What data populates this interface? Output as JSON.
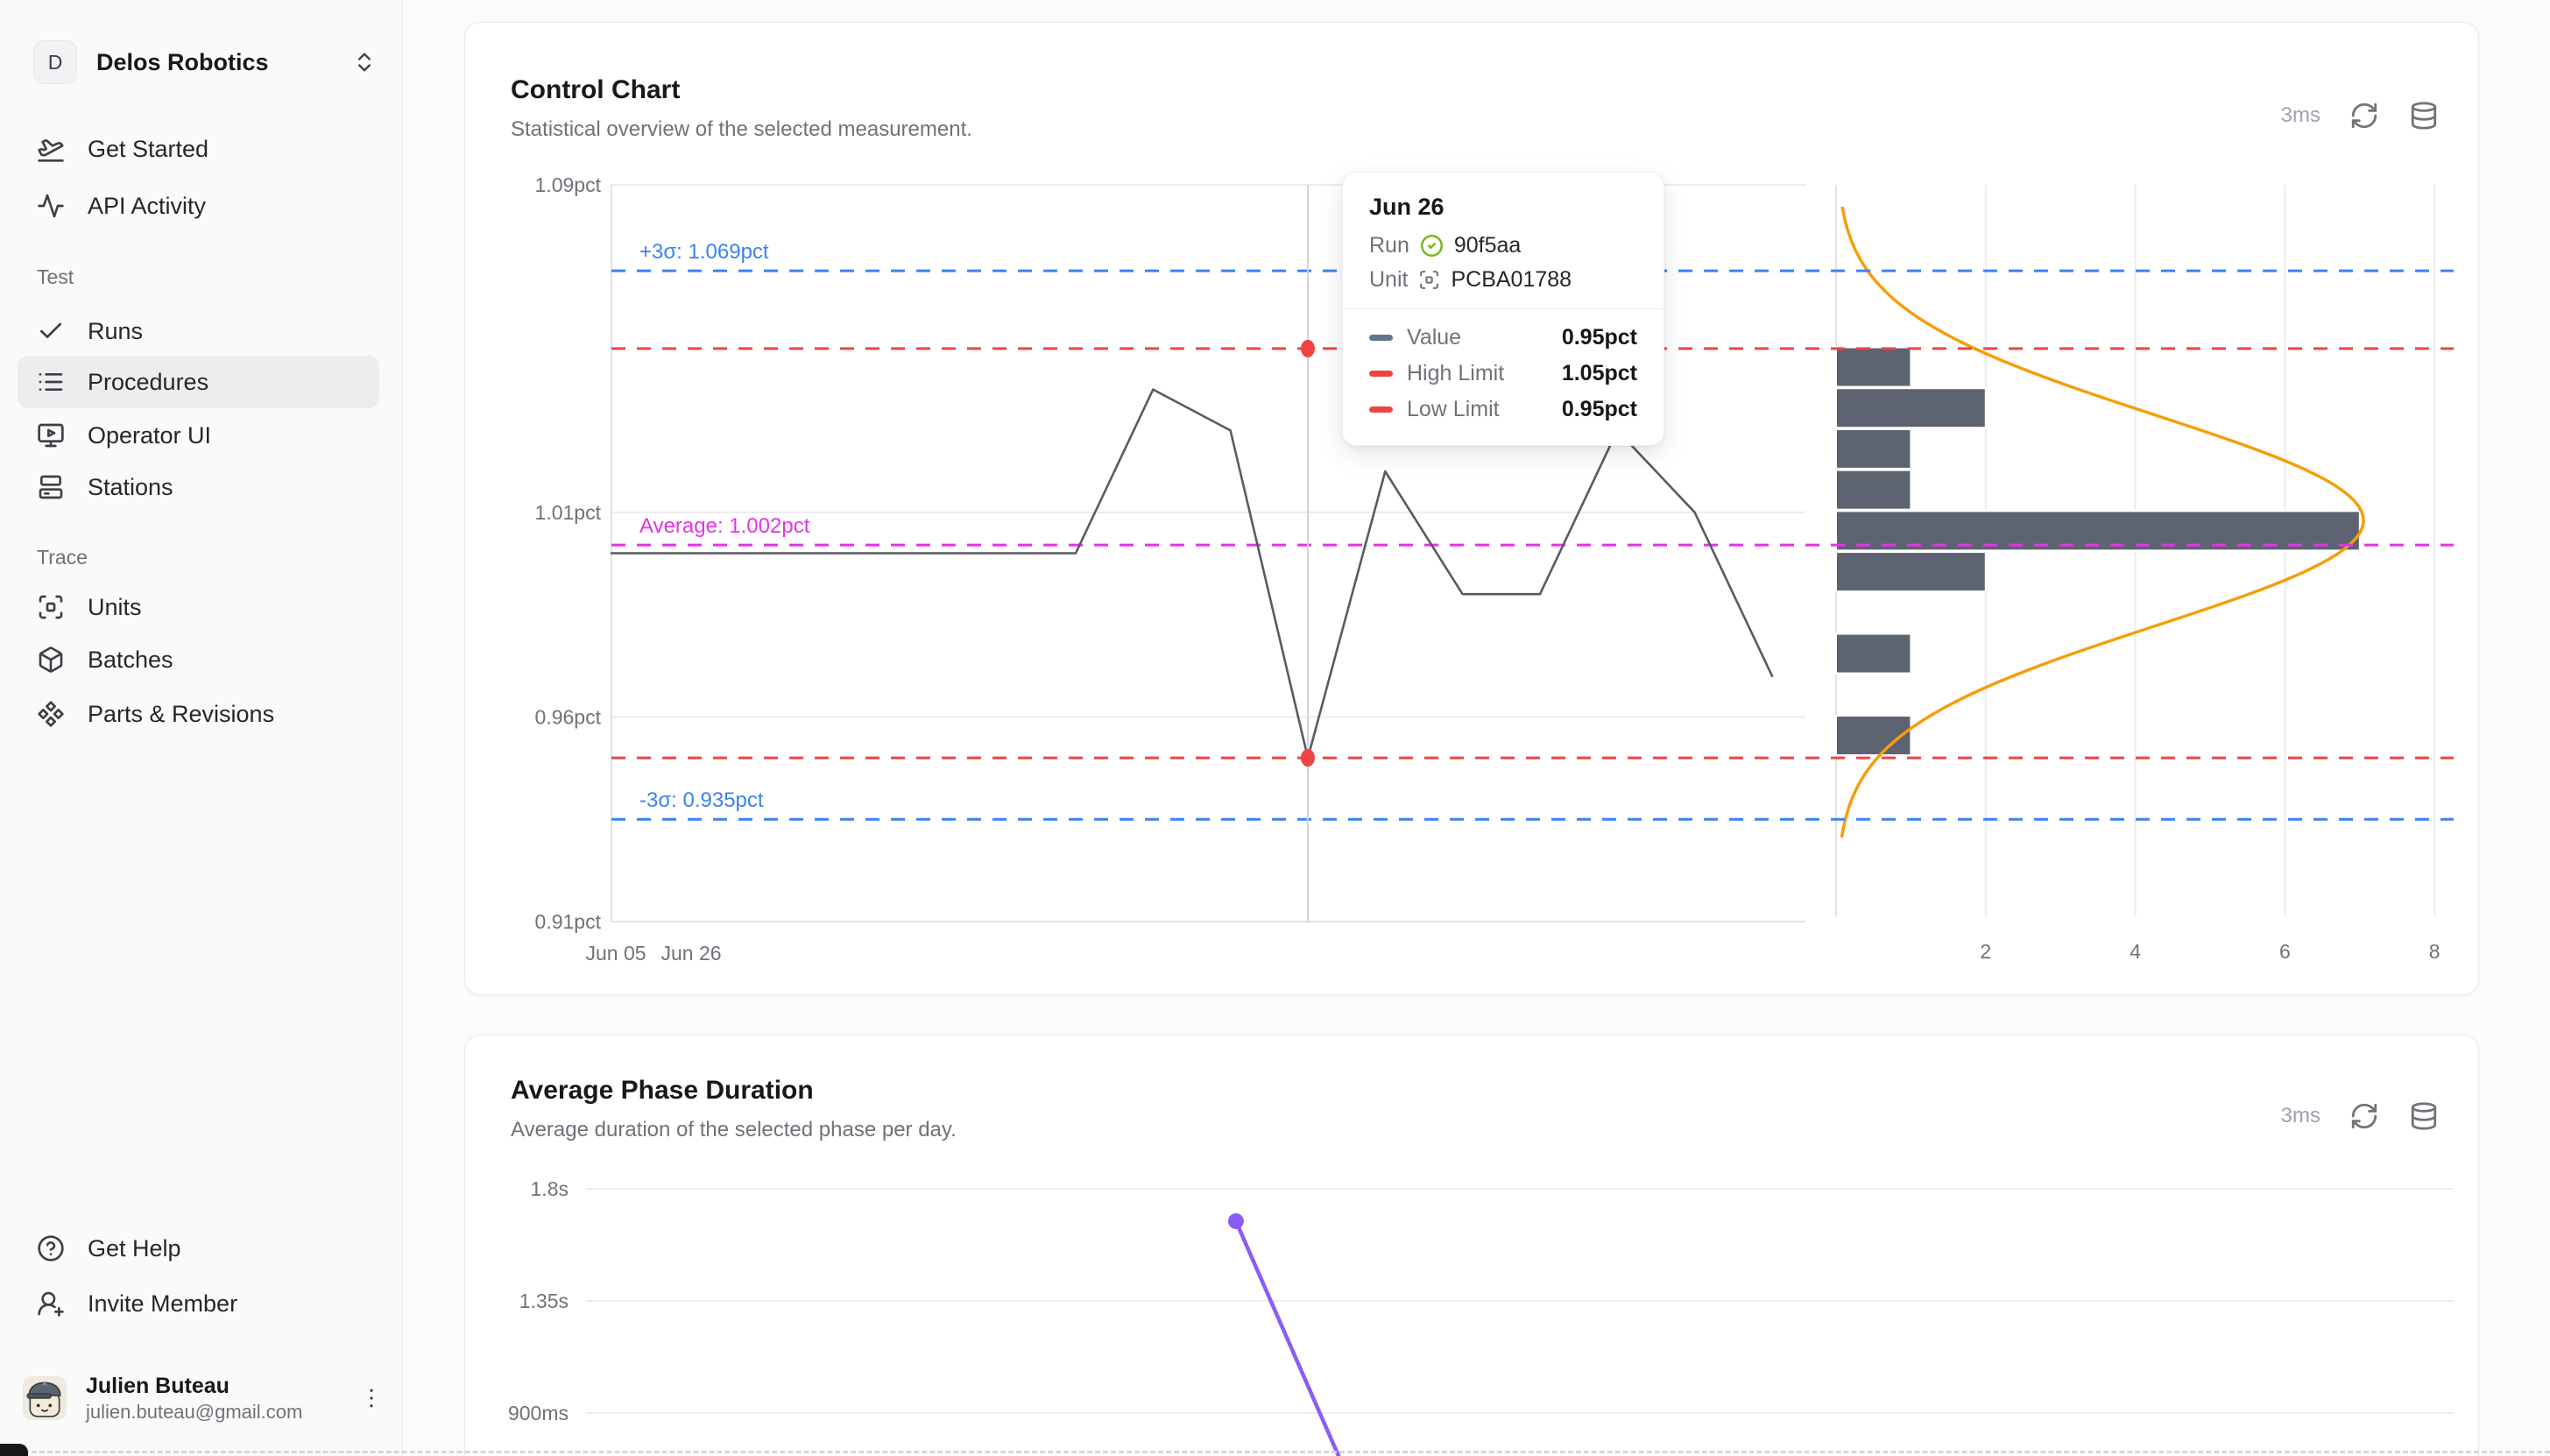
{
  "sidebar": {
    "workspace": {
      "initial": "D",
      "name": "Delos Robotics"
    },
    "groups": [
      {
        "label": "",
        "items": [
          {
            "label": "Get Started"
          },
          {
            "label": "API Activity"
          }
        ]
      },
      {
        "label": "Test",
        "items": [
          {
            "label": "Runs"
          },
          {
            "label": "Procedures",
            "active": true
          },
          {
            "label": "Operator UI"
          },
          {
            "label": "Stations"
          }
        ]
      },
      {
        "label": "Trace",
        "items": [
          {
            "label": "Units"
          },
          {
            "label": "Batches"
          },
          {
            "label": "Parts & Revisions"
          }
        ]
      }
    ],
    "footer_items": [
      {
        "label": "Get Help"
      },
      {
        "label": "Invite Member"
      }
    ],
    "user": {
      "name": "Julien Buteau",
      "email": "julien.buteau@gmail.com"
    }
  },
  "colors": {
    "blue": "#3b82f6",
    "red": "#ef4444",
    "magenta": "#e334e3",
    "series": "#5a5a64",
    "bar": "#5d6370",
    "curve": "#f59e0b",
    "purple": "#8b5cf6",
    "grid": "#ececef",
    "axis": "#e2e2e6",
    "tick_text": "#71717a",
    "crosshair": "#d4d4d8",
    "lime": "#7cb518"
  },
  "chart_data": [
    {
      "type": "line",
      "subtype": "control-chart-with-histogram",
      "title": "Control Chart",
      "subtitle": "Statistical overview of the selected measurement.",
      "latency": "3ms",
      "unit": "pct",
      "ylim": [
        0.91,
        1.09
      ],
      "y_ticks": [
        {
          "v": 1.09,
          "label": "1.09pct"
        },
        {
          "v": 1.01,
          "label": "1.01pct"
        },
        {
          "v": 0.96,
          "label": "0.96pct"
        },
        {
          "v": 0.91,
          "label": "0.91pct"
        }
      ],
      "x_ticks": [
        {
          "label": "Jun 05",
          "x": 702
        },
        {
          "label": "Jun 26",
          "x": 788
        }
      ],
      "series": [
        {
          "name": "Value",
          "values": [
            1.0,
            1.0,
            1.0,
            1.0,
            1.0,
            1.0,
            1.0,
            1.04,
            1.03,
            0.95,
            1.02,
            0.99,
            0.99,
            1.03,
            1.01,
            0.97
          ]
        }
      ],
      "limit_lines": [
        {
          "name": "plus-3-sigma",
          "value": 1.069,
          "color": "blue",
          "label": "+3σ: 1.069pct"
        },
        {
          "name": "high-limit",
          "value": 1.05,
          "color": "red",
          "label": ""
        },
        {
          "name": "average",
          "value": 1.002,
          "color": "magenta",
          "label": "Average: 1.002pct"
        },
        {
          "name": "low-limit",
          "value": 0.95,
          "color": "red",
          "label": ""
        },
        {
          "name": "minus-3-sigma",
          "value": 0.935,
          "color": "blue",
          "label": "-3σ: 0.935pct"
        }
      ],
      "hover": {
        "index": 9,
        "date": "Jun 26",
        "run_label": "Run",
        "run_id": "90f5aa",
        "unit_label": "Unit",
        "unit_id": "PCBA01788",
        "rows": [
          {
            "label": "Value",
            "value": "0.95pct",
            "swatch": "#64748b"
          },
          {
            "label": "High Limit",
            "value": "1.05pct",
            "swatch": "#ef4444"
          },
          {
            "label": "Low Limit",
            "value": "0.95pct",
            "swatch": "#ef4444"
          }
        ]
      },
      "histogram": {
        "orientation": "horizontal",
        "bin_values": [
          1.04,
          1.03,
          1.02,
          1.01,
          1.0,
          0.99,
          0.97,
          0.95
        ],
        "counts": [
          1,
          2,
          1,
          1,
          7,
          2,
          1,
          1
        ],
        "x_ticks": [
          2,
          4,
          6,
          8
        ],
        "xlim": [
          0,
          8
        ]
      },
      "curve": {
        "shape": "gaussian",
        "mu": 1.008,
        "sigma": 0.0257,
        "amplitude": 7.05
      }
    },
    {
      "type": "line",
      "title": "Average Phase Duration",
      "subtitle": "Average duration of the selected phase per day.",
      "latency": "3ms",
      "y_ticks": [
        {
          "v": 1.8,
          "label": "1.8s"
        },
        {
          "v": 1.35,
          "label": "1.35s"
        },
        {
          "v": 0.9,
          "label": "900ms"
        }
      ],
      "series": [
        {
          "name": "Average duration",
          "points": [
            {
              "x_frac": 0.348,
              "sec": 1.67,
              "dot": true
            },
            {
              "x_frac": 0.404,
              "sec": 0.71,
              "dot": false
            }
          ]
        }
      ]
    }
  ]
}
